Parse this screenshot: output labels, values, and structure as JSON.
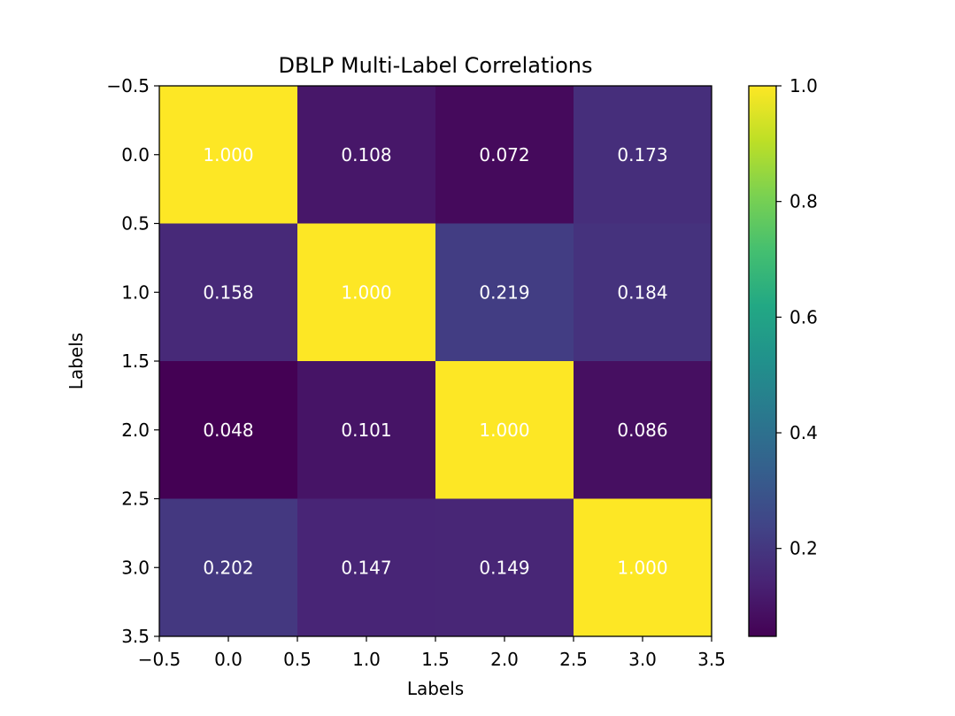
{
  "chart_data": {
    "type": "heatmap",
    "title": "DBLP Multi-Label Correlations",
    "xlabel": "Labels",
    "ylabel": "Labels",
    "matrix": [
      [
        1.0,
        0.108,
        0.072,
        0.173
      ],
      [
        0.158,
        1.0,
        0.219,
        0.184
      ],
      [
        0.048,
        0.101,
        1.0,
        0.086
      ],
      [
        0.202,
        0.147,
        0.149,
        1.0
      ]
    ],
    "cell_labels": [
      [
        "1.000",
        "0.108",
        "0.072",
        "0.173"
      ],
      [
        "0.158",
        "1.000",
        "0.219",
        "0.184"
      ],
      [
        "0.048",
        "0.101",
        "1.000",
        "0.086"
      ],
      [
        "0.202",
        "0.147",
        "0.149",
        "1.000"
      ]
    ],
    "xlim": [
      -0.5,
      3.5
    ],
    "ylim": [
      3.5,
      -0.5
    ],
    "xticks": [
      -0.5,
      0.0,
      0.5,
      1.0,
      1.5,
      2.0,
      2.5,
      3.0,
      3.5
    ],
    "xtick_labels": [
      "−0.5",
      "0.0",
      "0.5",
      "1.0",
      "1.5",
      "2.0",
      "2.5",
      "3.0",
      "3.5"
    ],
    "yticks": [
      -0.5,
      0.0,
      0.5,
      1.0,
      1.5,
      2.0,
      2.5,
      3.0,
      3.5
    ],
    "ytick_labels": [
      "−0.5",
      "0.0",
      "0.5",
      "1.0",
      "1.5",
      "2.0",
      "2.5",
      "3.0",
      "3.5"
    ],
    "colormap": "viridis",
    "colorbar": {
      "vmin": 0.048,
      "vmax": 1.0,
      "ticks": [
        0.2,
        0.4,
        0.6,
        0.8,
        1.0
      ],
      "tick_labels": [
        "0.2",
        "0.4",
        "0.6",
        "0.8",
        "1.0"
      ]
    },
    "cell_text_color": "#ffffff",
    "grid": false
  }
}
